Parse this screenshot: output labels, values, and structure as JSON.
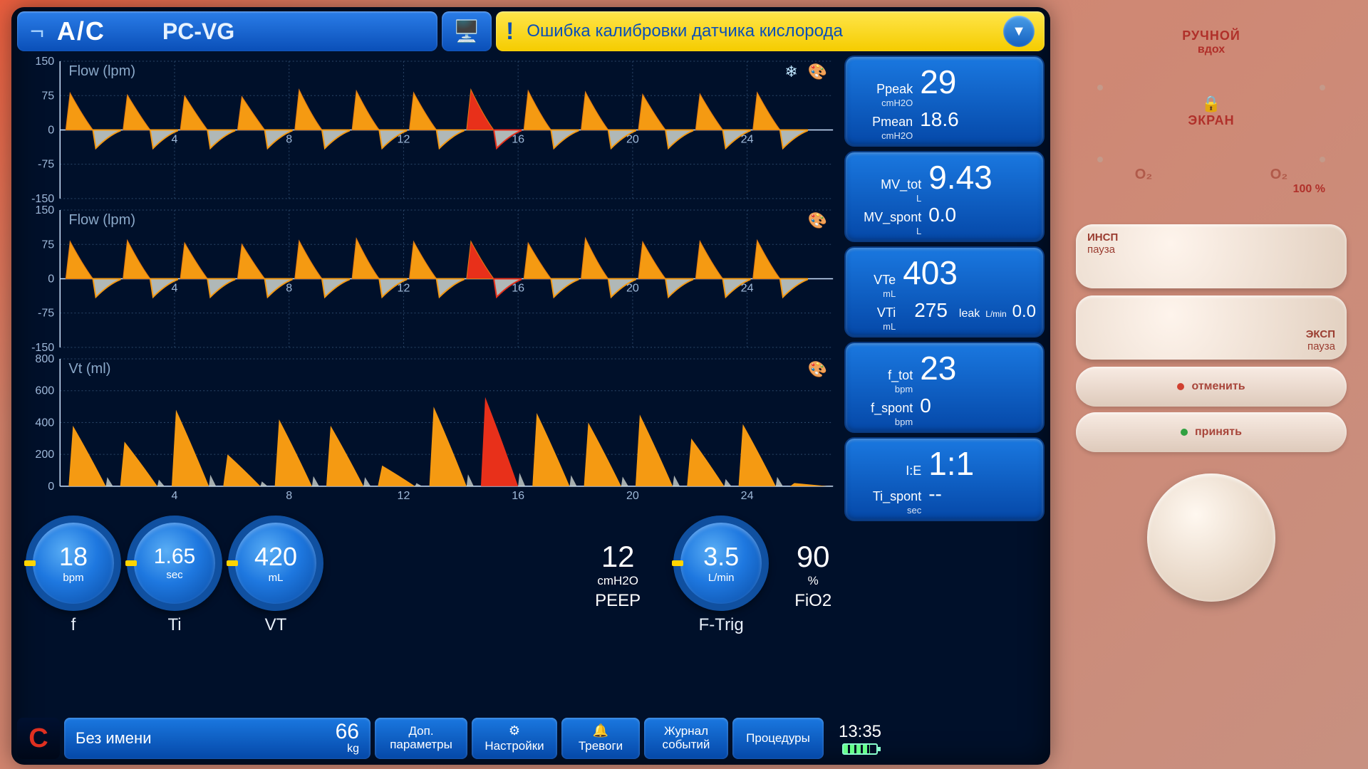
{
  "header": {
    "mode": "A/C",
    "submode": "PC-VG",
    "monitor_icon": "🖥️",
    "alert_icon": "!",
    "alert_text": "Ошибка калибровки датчика кислорода",
    "dropdown_glyph": "▼"
  },
  "charts": {
    "flow1": {
      "title": "Flow (lpm)",
      "ymin": -150,
      "ymax": 150,
      "yticks": [
        -150,
        -75,
        0,
        75,
        150
      ],
      "xticks": [
        4,
        8,
        12,
        16,
        20,
        24
      ],
      "freeze_icon": "❄",
      "palette_icon": "🎨",
      "fill_color": "#f59a12",
      "line_color": "#e07a10",
      "highlight_color": "#e8301a",
      "grid_color": "#2a4668",
      "shadow_color": "#cfd6d0"
    },
    "flow2": {
      "title": "Flow (lpm)",
      "ymin": -150,
      "ymax": 150,
      "yticks": [
        -150,
        -75,
        0,
        75,
        150
      ],
      "xticks": [
        4,
        8,
        12,
        16,
        20,
        24
      ],
      "palette_icon": "🎨"
    },
    "vt": {
      "title": "Vt (ml)",
      "ymin": 0,
      "ymax": 800,
      "yticks": [
        0,
        200,
        400,
        600,
        800
      ],
      "xticks": [
        4,
        8,
        12,
        16,
        20,
        24
      ],
      "palette_icon": "🎨",
      "fill_color": "#f59a12",
      "highlight_color": "#e8301a",
      "shadow_color": "#cfd6d0"
    },
    "flow_series": {
      "period_sec": 2.0,
      "n_cycles": 13,
      "highlight_cycle": 7,
      "insp_peak": 85,
      "exp_peak": -40
    },
    "vt_series": {
      "heights": [
        380,
        280,
        480,
        200,
        420,
        380,
        130,
        500,
        560,
        460,
        400,
        450,
        300,
        390,
        20
      ],
      "highlight_index": 8
    }
  },
  "params": {
    "ppeak": {
      "label": "Ppeak",
      "unit": "cmH2O",
      "value": "29"
    },
    "pmean": {
      "label": "Pmean",
      "unit": "cmH2O",
      "value": "18.6"
    },
    "mvtot": {
      "label": "MV_tot",
      "unit": "L",
      "value": "9.43"
    },
    "mvspont": {
      "label": "MV_spont",
      "unit": "L",
      "value": "0.0"
    },
    "vte": {
      "label": "VTe",
      "unit": "mL",
      "value": "403"
    },
    "vti": {
      "label": "VTi",
      "unit": "mL",
      "value": "275"
    },
    "leak": {
      "label": "leak",
      "unit": "L/min",
      "value": "0.0"
    },
    "ftot": {
      "label": "f_tot",
      "unit": "bpm",
      "value": "23"
    },
    "fspont": {
      "label": "f_spont",
      "unit": "bpm",
      "value": "0"
    },
    "ie": {
      "label": "I:E",
      "unit": "",
      "value": "1:1"
    },
    "tispont": {
      "label": "Ti_spont",
      "unit": "sec",
      "value": "--"
    }
  },
  "dials": {
    "f": {
      "value": "18",
      "unit": "bpm",
      "label": "f"
    },
    "ti": {
      "value": "1.65",
      "unit": "sec",
      "label": "Ti"
    },
    "vt": {
      "value": "420",
      "unit": "mL",
      "label": "VT"
    },
    "peep": {
      "value": "12",
      "unit": "cmH2O",
      "label": "PEEP"
    },
    "ftrig": {
      "value": "3.5",
      "unit": "L/min",
      "label": "F-Trig"
    },
    "fio2": {
      "value": "90",
      "unit": "%",
      "label": "FiO2"
    }
  },
  "bottom": {
    "c_label": "C",
    "patient_name": "Без имени",
    "weight": "66",
    "weight_unit": "kg",
    "b1": "Доп. параметры",
    "b2": "Настройки",
    "b2_icon": "⚙",
    "b3": "Тревоги",
    "b3_icon": "🔔",
    "b4": "Журнал событий",
    "b5": "Процедуры",
    "time": "13:35"
  },
  "physical": {
    "manual_breath_l1": "РУЧНОЙ",
    "manual_breath_l2": "вдох",
    "lock_icon": "🔒",
    "screen": "ЭКРАН",
    "o2": "O₂",
    "o2_100": "100 %",
    "o2_dot": "O₂",
    "insp_l1": "ИНСП",
    "insp_l2": "пауза",
    "exp_l1": "ЭКСП",
    "exp_l2": "пауза",
    "cancel": "отменить",
    "accept": "принять"
  },
  "colors": {
    "screen_bg": "#00102a",
    "panel_blue_top": "#2a7de8",
    "panel_blue_bot": "#0a4fb8",
    "alert_yellow_top": "#ffe54a",
    "alert_yellow_bot": "#f5cc00",
    "param_blue_top": "#1a78e0",
    "param_blue_bot": "#0548a8"
  }
}
